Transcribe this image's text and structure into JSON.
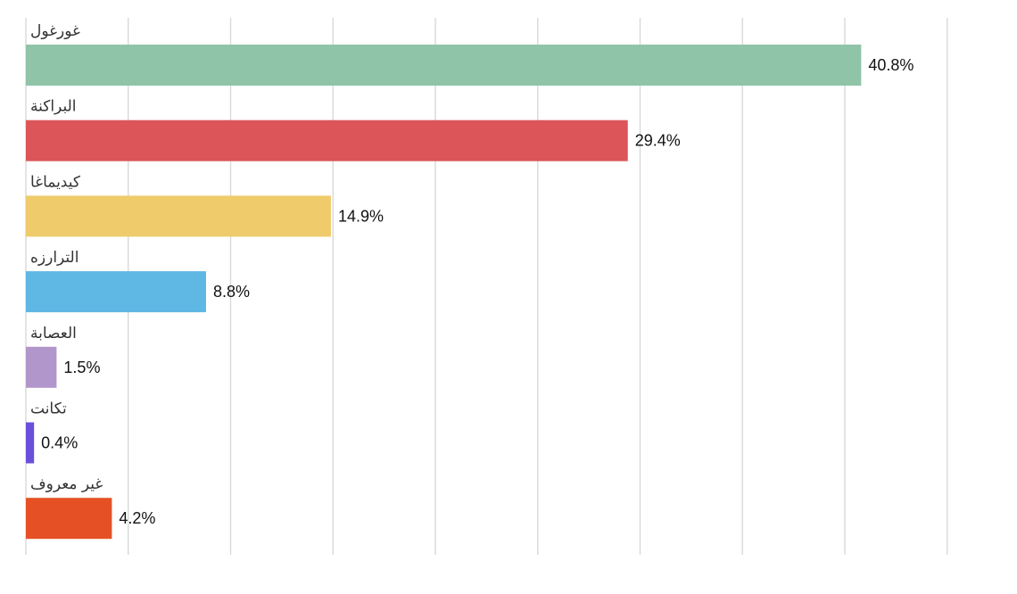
{
  "chart_data": {
    "type": "bar",
    "orientation": "horizontal",
    "categories": [
      "غورغول",
      "البراكنة",
      "كيديماغا",
      "الترارزه",
      "العصابة",
      "تكانت",
      "غير معروف"
    ],
    "values": [
      40.8,
      29.4,
      14.9,
      8.8,
      1.5,
      0.4,
      4.2
    ],
    "value_labels": [
      "40.8%",
      "29.4%",
      "14.9%",
      "8.8%",
      "1.5%",
      "0.4%",
      "4.2%"
    ],
    "colors": [
      "#8fc4a8",
      "#dc5558",
      "#efcb6c",
      "#5fb7e4",
      "#b196cb",
      "#6b4fdb",
      "#e55124"
    ],
    "unit": "%",
    "xlim": [
      0,
      45
    ],
    "grid": true,
    "legend": "none"
  }
}
